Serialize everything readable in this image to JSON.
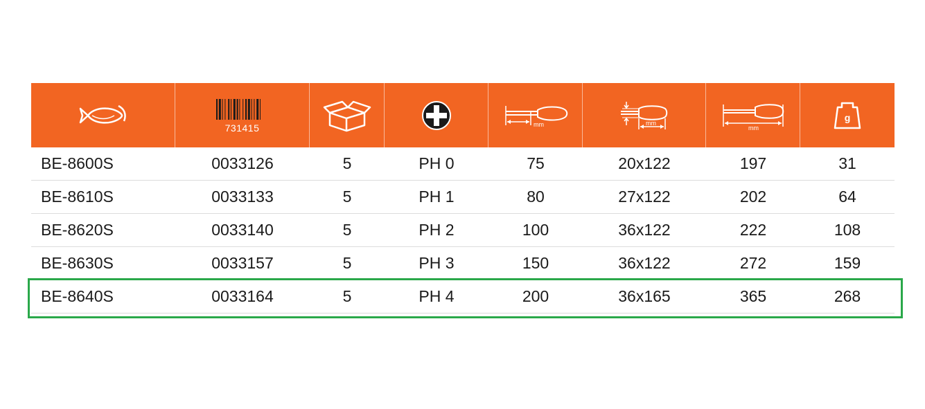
{
  "colors": {
    "accent": "#f26522",
    "highlight": "#2aa84a",
    "icon": "#ffffff"
  },
  "header": {
    "icons": [
      "fish-icon",
      "barcode-icon",
      "box-icon",
      "phillips-tip-icon",
      "blade-length-icon",
      "handle-dimensions-icon",
      "overall-length-icon",
      "weight-icon"
    ],
    "barcode_number": "731415",
    "unit_mm": "mm",
    "weight_unit": "g"
  },
  "rows": [
    [
      "BE-8600S",
      "0033126",
      "5",
      "PH 0",
      "75",
      "20x122",
      "197",
      "31"
    ],
    [
      "BE-8610S",
      "0033133",
      "5",
      "PH 1",
      "80",
      "27x122",
      "202",
      "64"
    ],
    [
      "BE-8620S",
      "0033140",
      "5",
      "PH 2",
      "100",
      "36x122",
      "222",
      "108"
    ],
    [
      "BE-8630S",
      "0033157",
      "5",
      "PH 3",
      "150",
      "36x122",
      "272",
      "159"
    ],
    [
      "BE-8640S",
      "0033164",
      "5",
      "PH 4",
      "200",
      "36x165",
      "365",
      "268"
    ]
  ]
}
